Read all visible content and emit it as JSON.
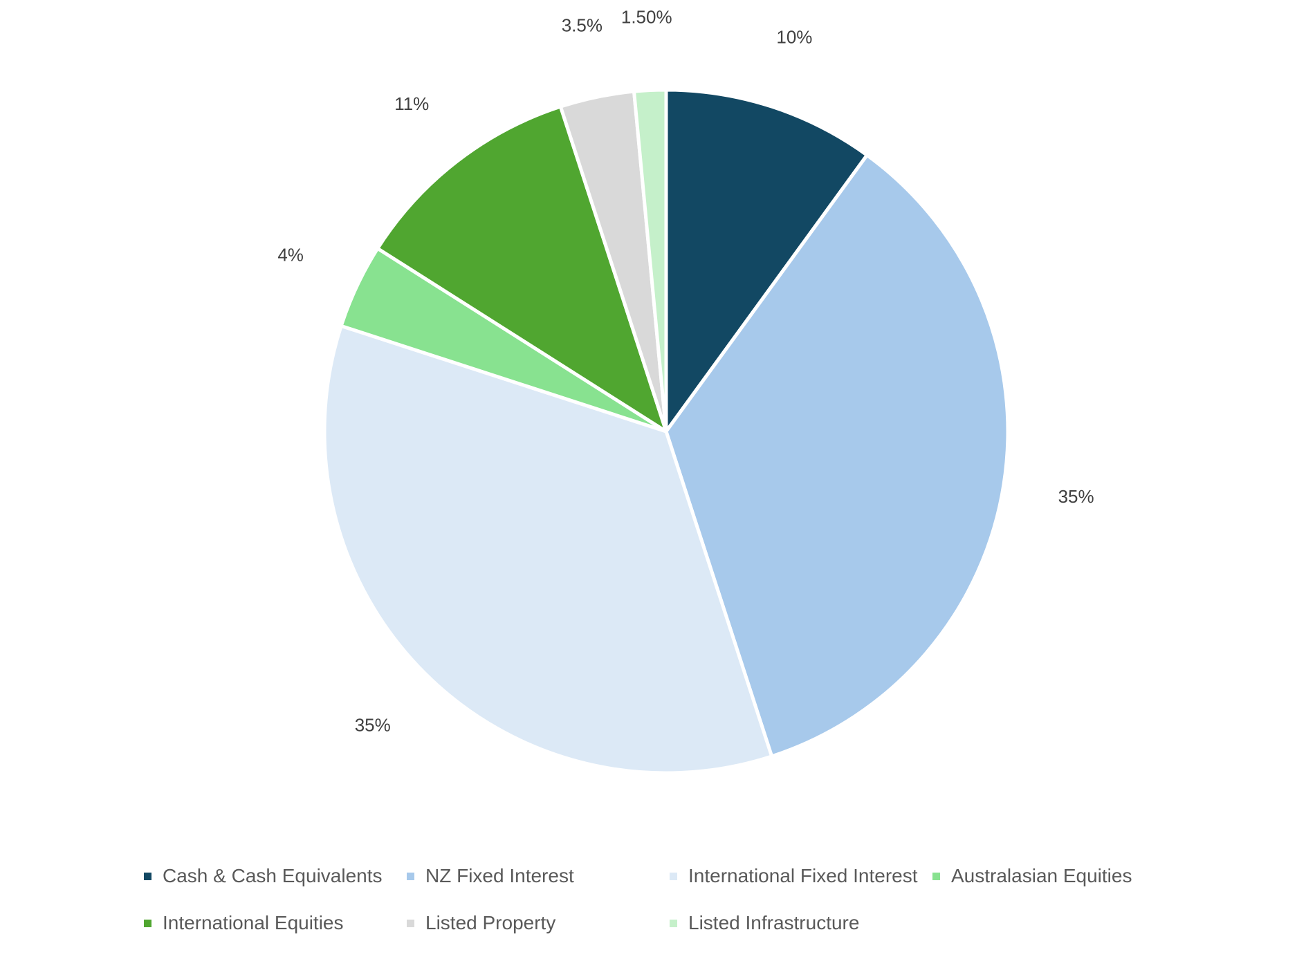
{
  "chart_data": {
    "type": "pie",
    "title": "",
    "legend_position": "bottom",
    "start_angle_deg": 0,
    "direction": "clockwise",
    "slices": [
      {
        "name": "Cash & Cash Equivalents",
        "value": 10,
        "label": "10%",
        "color": "#124863"
      },
      {
        "name": "NZ Fixed Interest",
        "value": 35,
        "label": "35%",
        "color": "#A7C9EB"
      },
      {
        "name": "International Fixed Interest",
        "value": 35,
        "label": "35%",
        "color": "#DCE9F6"
      },
      {
        "name": "Australasian Equities",
        "value": 4,
        "label": "4%",
        "color": "#88E290"
      },
      {
        "name": "International Equities",
        "value": 11,
        "label": "11%",
        "color": "#50A630"
      },
      {
        "name": "Listed Property",
        "value": 3.5,
        "label": "3.5%",
        "color": "#D9D9D9"
      },
      {
        "name": "Listed Infrastructure",
        "value": 1.5,
        "label": "1.50%",
        "color": "#C5F0CA"
      }
    ]
  }
}
